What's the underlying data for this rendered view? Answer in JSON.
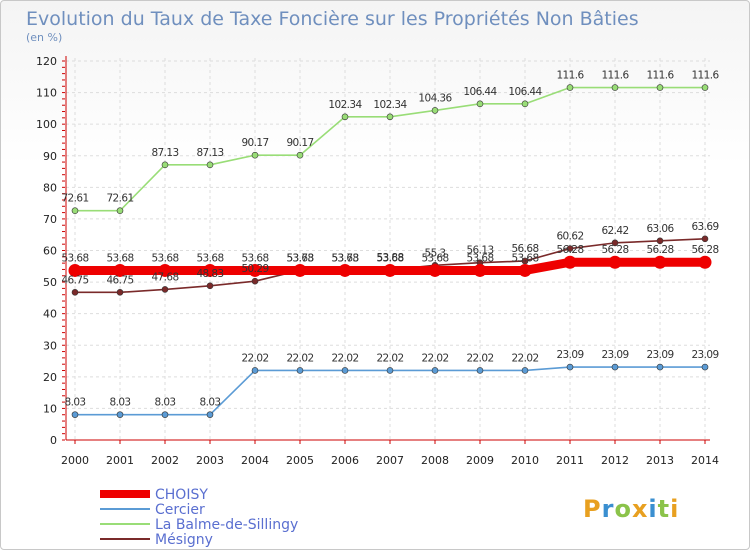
{
  "chart_data": {
    "type": "line",
    "title": "Evolution du Taux de Taxe Foncière sur les Propriétés Non Bâties",
    "subtitle": "(en %)",
    "categories": [
      "2000",
      "2001",
      "2002",
      "2003",
      "2004",
      "2005",
      "2006",
      "2007",
      "2008",
      "2009",
      "2010",
      "2011",
      "2012",
      "2013",
      "2014"
    ],
    "ylim": [
      0,
      120
    ],
    "yticks": [
      0,
      10,
      20,
      30,
      40,
      50,
      60,
      70,
      80,
      90,
      100,
      110,
      120
    ],
    "grid": true,
    "legend_position": "bottom-left",
    "series": [
      {
        "name": "CHOISY",
        "color": "#ee0000",
        "values": [
          53.68,
          53.68,
          53.68,
          53.68,
          53.68,
          53.68,
          53.68,
          53.68,
          53.68,
          53.68,
          53.68,
          56.28,
          56.28,
          56.28,
          56.28
        ],
        "labels": [
          "53.68",
          "53.68",
          "53.68",
          "53.68",
          "53.68",
          "53.68",
          "53.68",
          "53.68",
          "53.68",
          "53.68",
          "53.68",
          "56.28",
          "56.28",
          "56.28",
          "56.28"
        ]
      },
      {
        "name": "Cercier",
        "color": "#5b9bd5",
        "values": [
          8.03,
          8.03,
          8.03,
          8.03,
          22.02,
          22.02,
          22.02,
          22.02,
          22.02,
          22.02,
          22.02,
          23.09,
          23.09,
          23.09,
          23.09
        ],
        "labels": [
          "8.03",
          "8.03",
          "8.03",
          "8.03",
          "22.02",
          "22.02",
          "22.02",
          "22.02",
          "22.02",
          "22.02",
          "22.02",
          "23.09",
          "23.09",
          "23.09",
          "23.09"
        ]
      },
      {
        "name": "La Balme-de-Sillingy",
        "color": "#99dd77",
        "values": [
          72.61,
          72.61,
          87.13,
          87.13,
          90.17,
          90.17,
          102.34,
          102.34,
          104.36,
          106.44,
          106.44,
          111.6,
          111.6,
          111.6,
          111.6
        ],
        "labels": [
          "72.61",
          "72.61",
          "87.13",
          "87.13",
          "90.17",
          "90.17",
          "102.34",
          "102.34",
          "104.36",
          "106.44",
          "106.44",
          "111.6",
          "111.6",
          "111.6",
          "111.6"
        ]
      },
      {
        "name": "Mésigny",
        "color": "#7a2a2a",
        "values": [
          46.75,
          46.75,
          47.68,
          48.83,
          50.29,
          53.73,
          53.73,
          53.88,
          55.3,
          56.13,
          56.68,
          60.62,
          62.42,
          63.06,
          63.69
        ],
        "labels": [
          "46.75",
          "46.75",
          "47.68",
          "48.83",
          "50.29",
          "53.73",
          "53.73",
          "53.88",
          "55.3",
          "56.13",
          "56.68",
          "60.62",
          "62.42",
          "63.06",
          "63.69"
        ]
      }
    ]
  },
  "brand": {
    "letters": [
      "P",
      "r",
      "o",
      "x",
      "i",
      "t",
      "i"
    ]
  }
}
